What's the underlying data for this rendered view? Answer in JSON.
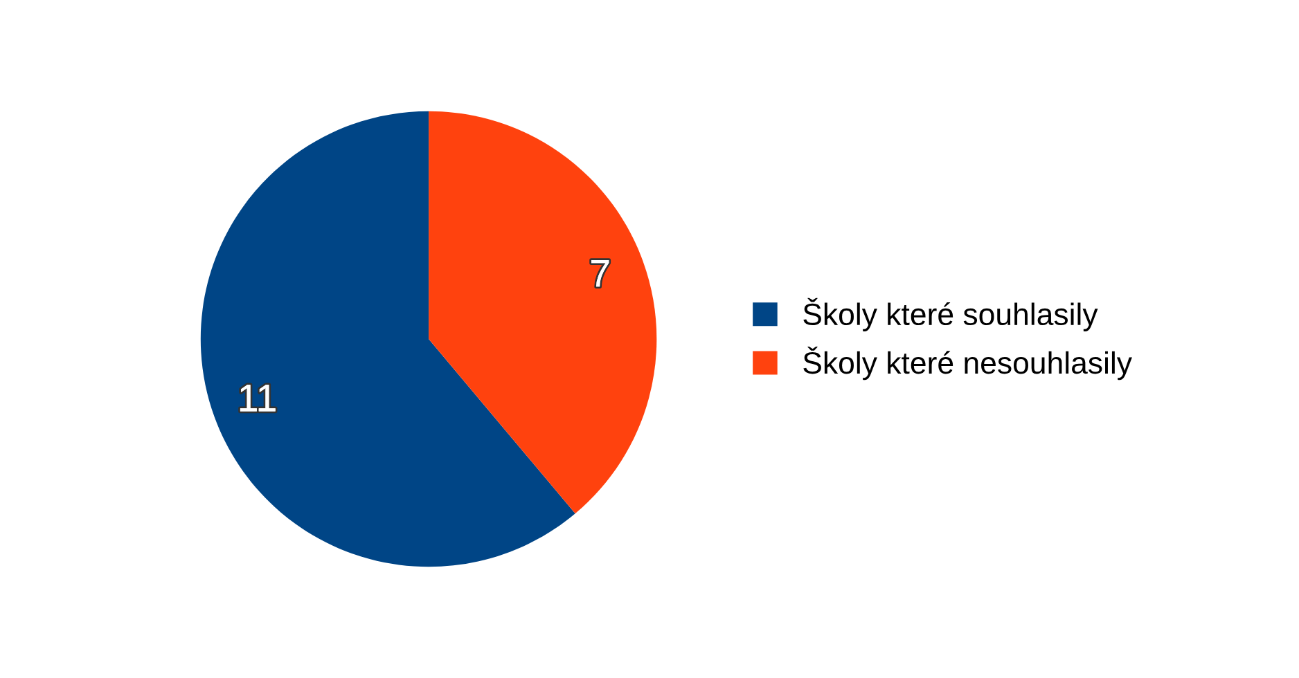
{
  "chart_data": {
    "type": "pie",
    "categories": [
      "Školy které souhlasily",
      "Školy které nesouhlasily"
    ],
    "values": [
      11,
      7
    ],
    "colors": [
      "#004586",
      "#ff420e"
    ],
    "data_labels": true,
    "legend": "right"
  }
}
